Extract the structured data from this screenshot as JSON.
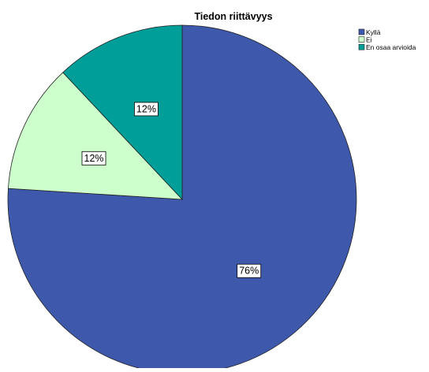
{
  "chart_data": {
    "type": "pie",
    "title": "Tiedon riittävyys",
    "slices": [
      {
        "name": "Kyllä",
        "value": 76,
        "label": "76%",
        "color": "#3e58ac"
      },
      {
        "name": "Ei",
        "value": 12,
        "label": "12%",
        "color": "#ccffcc"
      },
      {
        "name": "En osaa arvioida",
        "value": 12,
        "label": "12%",
        "color": "#009e98"
      }
    ],
    "legend_position": "top-right",
    "start_angle_deg": 0,
    "direction": "clockwise"
  }
}
